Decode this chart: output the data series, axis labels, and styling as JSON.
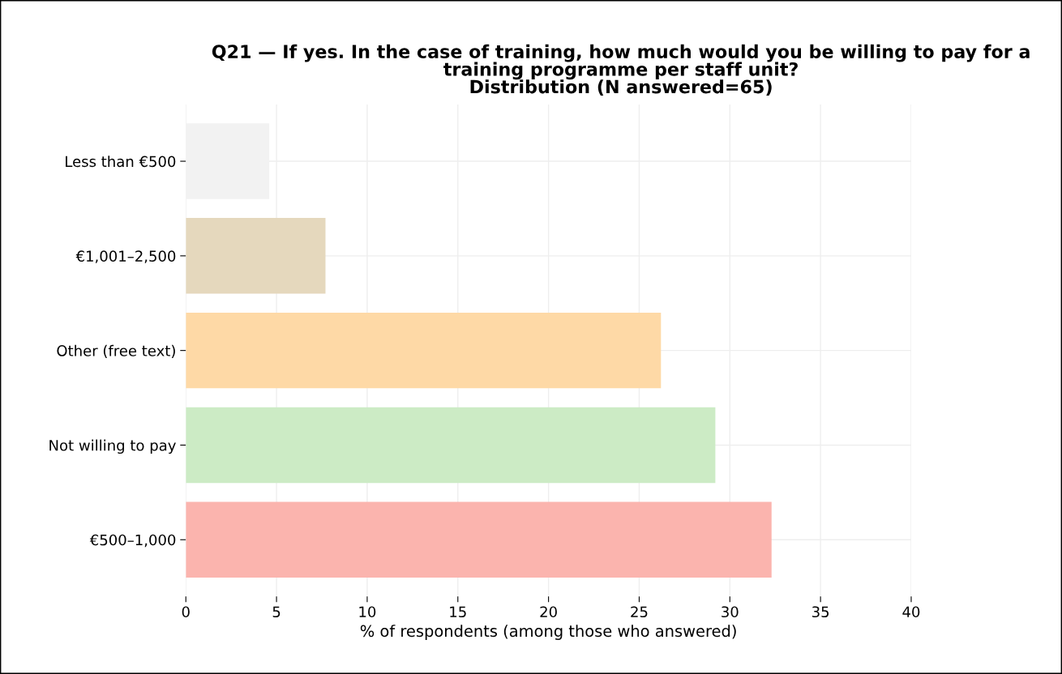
{
  "chart_data": {
    "type": "bar",
    "orientation": "horizontal",
    "title": "Q21 — If yes. In the case of training, how much would you be willing to pay for a\ntraining programme per staff unit?\nDistribution (N answered=65)",
    "xlabel": "% of respondents (among those who answered)",
    "categories": [
      "Less than €500",
      "€1,001–2,500",
      "Other (free text)",
      "Not willing to pay",
      "€500–1,000"
    ],
    "values": [
      4.6,
      7.7,
      26.2,
      29.2,
      32.3
    ],
    "colors": [
      "#f2f2f2",
      "#e5d8bd",
      "#fed9a6",
      "#ccebc5",
      "#fbb4ae"
    ],
    "xlim": [
      0,
      40
    ],
    "xticks": [
      0,
      5,
      10,
      15,
      20,
      25,
      30,
      35,
      40
    ],
    "grid": true
  }
}
